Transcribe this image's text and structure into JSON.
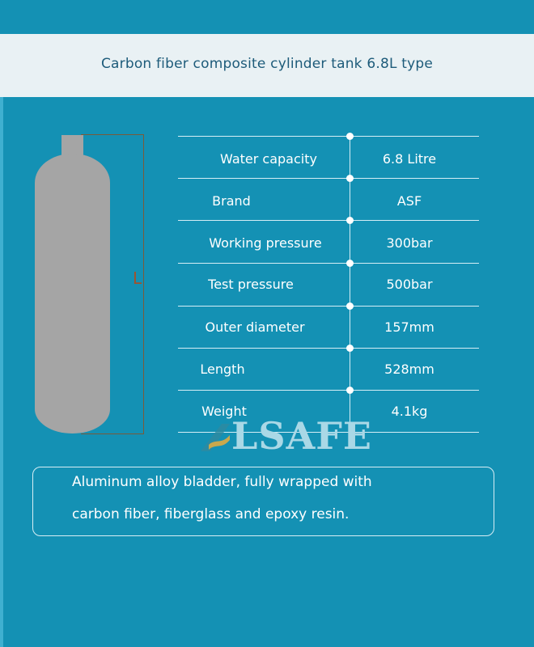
{
  "header": {
    "title": "Carbon fiber composite cylinder tank 6.8L type"
  },
  "diagram": {
    "length_label": "L"
  },
  "specs": [
    {
      "label": "Water capacity",
      "value": "6.8 Litre"
    },
    {
      "label": "Brand",
      "value": "ASF"
    },
    {
      "label": "Working pressure",
      "value": "300bar"
    },
    {
      "label": "Test pressure",
      "value": "500bar"
    },
    {
      "label": "Outer diameter",
      "value": "157mm"
    },
    {
      "label": "Length",
      "value": "528mm"
    },
    {
      "label": "Weight",
      "value": "4.1kg"
    }
  ],
  "logo": {
    "text": "LSAFE"
  },
  "note": {
    "line1": "Aluminum alloy bladder, fully wrapped with",
    "line2": "carbon fiber, fiberglass and epoxy resin."
  },
  "colors": {
    "background": "#1491b4",
    "header_band": "#e9f1f4",
    "title": "#1d5b7a",
    "cylinder": "#a5a5a5"
  }
}
